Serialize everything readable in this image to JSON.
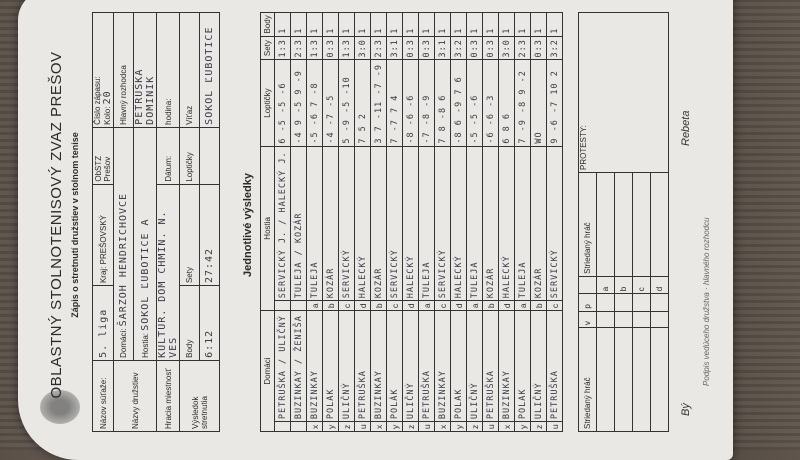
{
  "header": {
    "title": "OBLASTNÝ STOLNOTENISOVÝ ZVAZ PREŠOV",
    "subtitle": "Zápis o stretnutí družstiev v stolnom tenise"
  },
  "info": {
    "competition_label": "Názov súťaže:",
    "competition": "5. liga",
    "region_label": "Kraj:",
    "region": "PREŠOVSKÝ",
    "obstz": "ObSTZ Prešov",
    "match_no_label": "Číslo zápasu:",
    "round_label": "Kolo:",
    "round": "20",
    "teams_label": "Názvy družstiev",
    "home_label": "Domáci:",
    "home": "ŠARZOH HENDRICHOVCE",
    "away_label": "Hostia:",
    "away": "SOKOL ĽUBOTICE A",
    "referee_label": "Hlavný rozhodca",
    "referee": "PETRUŠKA DOMINIK",
    "venue_label": "Hracia miestnosť",
    "venue": "KULTÚR. DOM CHMIN. N. VES",
    "date_label": "Dátum:",
    "time_label": "hodina:",
    "result_label": "Výsledok stretnutia",
    "points_label": "Body",
    "points": "6:12",
    "sets_label": "Sety",
    "sets": "27:42",
    "balls_label": "Loptičky",
    "winner_label": "Víťaz",
    "winner": "SOKOL ĽUBOTICE"
  },
  "results": {
    "title": "Jednotlivé výsledky",
    "headers": {
      "home": "Domáci",
      "away": "Hostia",
      "balls": "Loptičky",
      "sets": "Sety",
      "points": "Body"
    },
    "rows": [
      {
        "hk": "",
        "home": "PETRUŠKA / ULIČNÝ",
        "ak": "",
        "away": "SERVICKÝ J. / HALECKÝ J.",
        "balls": "6 -5 -5 -6",
        "sets": "1:3",
        "points": "1"
      },
      {
        "hk": "",
        "home": "BUZINKAY / ŽENIŠA",
        "ak": "",
        "away": "TULEJA / KOZÁR",
        "balls": "-4 9 -5 9 -9",
        "sets": "2:3",
        "points": "1"
      },
      {
        "hk": "x",
        "home": "BUZINKAY",
        "ak": "a",
        "away": "TULEJA",
        "balls": "-5 -6 7 -8",
        "sets": "1:3",
        "points": "1"
      },
      {
        "hk": "y",
        "home": "POLAK",
        "ak": "b",
        "away": "KOZÁR",
        "balls": "-4 -7 -5",
        "sets": "0:3",
        "points": "1"
      },
      {
        "hk": "z",
        "home": "ULIČNÝ",
        "ak": "c",
        "away": "SERVICKÝ",
        "balls": "5 -9 -5 -10",
        "sets": "1:3",
        "points": "1"
      },
      {
        "hk": "u",
        "home": "PETRUŠKA",
        "ak": "d",
        "away": "HALECKÝ",
        "balls": "7 5 2",
        "sets": "3:0",
        "points": "1"
      },
      {
        "hk": "x",
        "home": "BUZINKAY",
        "ak": "b",
        "away": "KOZÁR",
        "balls": "3 7 -11 -7 -9",
        "sets": "2:3",
        "points": "1"
      },
      {
        "hk": "y",
        "home": "POLÁK",
        "ak": "c",
        "away": "SERVICKÝ",
        "balls": "7 -7 7 4",
        "sets": "3:1",
        "points": "1"
      },
      {
        "hk": "z",
        "home": "ULIČNÝ",
        "ak": "d",
        "away": "HALECKÝ",
        "balls": "-8 -6 -6",
        "sets": "0:3",
        "points": "1"
      },
      {
        "hk": "u",
        "home": "PETRUŠKA",
        "ak": "a",
        "away": "TULEJA",
        "balls": "-7 -8 -9",
        "sets": "0:3",
        "points": "1"
      },
      {
        "hk": "x",
        "home": "BUZINKAY",
        "ak": "c",
        "away": "SERVICKÝ",
        "balls": "7 8 -8 6",
        "sets": "3:1",
        "points": "1"
      },
      {
        "hk": "y",
        "home": "POLAK",
        "ak": "d",
        "away": "HALECKÝ",
        "balls": "-8 6 -9 7 6",
        "sets": "3:2",
        "points": "1"
      },
      {
        "hk": "z",
        "home": "ULIČNÝ",
        "ak": "a",
        "away": "TULEJA",
        "balls": "-5 -5 -6",
        "sets": "0:3",
        "points": "1"
      },
      {
        "hk": "u",
        "home": "PETRUŠKA",
        "ak": "b",
        "away": "KOZÁR",
        "balls": "-6 -6 -3",
        "sets": "0:3",
        "points": "1"
      },
      {
        "hk": "x",
        "home": "BUZINKAY",
        "ak": "d",
        "away": "HALECKÝ",
        "balls": "6 8 6",
        "sets": "3:0",
        "points": "1"
      },
      {
        "hk": "y",
        "home": "POLAK",
        "ak": "a",
        "away": "TULEJA",
        "balls": "7 -9 -8 9 -2",
        "sets": "2:3",
        "points": "1"
      },
      {
        "hk": "z",
        "home": "ULIČNÝ",
        "ak": "b",
        "away": "KOZÁR",
        "balls": "WO",
        "sets": "0:3",
        "points": "1"
      },
      {
        "hk": "u",
        "home": "PETRUŠKA",
        "ak": "c",
        "away": "SERVICKÝ",
        "balls": "9 -6 -7 10 2",
        "sets": "3:2",
        "points": "1"
      }
    ]
  },
  "substitutes": {
    "label": "Striedaný hráč",
    "v": "v",
    "p": "p",
    "letters": [
      "a",
      "b",
      "c",
      "d"
    ],
    "protests_label": "PROTESTY:"
  },
  "footer": {
    "signature_home": "Bý",
    "signature_away": "Rebeta",
    "note": "Podpis vedúceho družstva · hlavného rozhodcu"
  }
}
